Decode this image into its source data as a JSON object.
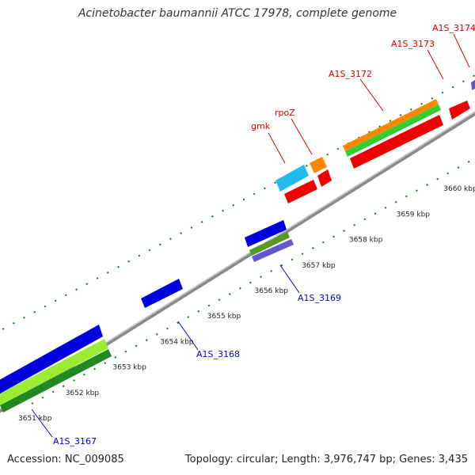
{
  "title": "Acinetobacter baumannii ATCC 17978, complete genome",
  "footer": {
    "accession": "Accession: NC_009085",
    "summary": "Topology: circular; Length: 3,976,747 bp; Genes: 3,435"
  },
  "colors": {
    "backbone": "#888888",
    "forward_label": "#dd0000",
    "reverse_label": "#0000cc",
    "tick": "#117711",
    "tick_label": "#222222"
  },
  "ticks": {
    "kbp_labels": [
      "3651 kbp",
      "3652 kbp",
      "3653 kbp",
      "3654 kbp",
      "3655 kbp",
      "3656 kbp",
      "3657 kbp",
      "3658 kbp",
      "3659 kbp",
      "3660 kbp"
    ]
  },
  "genes": {
    "forward": [
      {
        "name": "gmk",
        "color": "#dd0000"
      },
      {
        "name": "rpoZ",
        "color": "#dd0000"
      },
      {
        "name": "A1S_3172",
        "color": "#dd0000"
      },
      {
        "name": "A1S_3173",
        "color": "#dd0000"
      },
      {
        "name": "A1S_3174",
        "color": "#dd0000"
      }
    ],
    "reverse": [
      {
        "name": "A1S_3167",
        "color": "#0000cc"
      },
      {
        "name": "A1S_3168",
        "color": "#0000cc"
      },
      {
        "name": "A1S_3169",
        "color": "#0000cc"
      }
    ]
  },
  "feature_colors": {
    "cds": "#ee0000",
    "cds_reverse": "#0000dd",
    "gene_fwd_a": "#ff8800",
    "gene_fwd_b": "#33cc33",
    "gene_fwd_c": "#22bbee",
    "gene_rev_a": "#99ee33",
    "gene_rev_b": "#228822",
    "gene_rev_c": "#6655cc"
  }
}
